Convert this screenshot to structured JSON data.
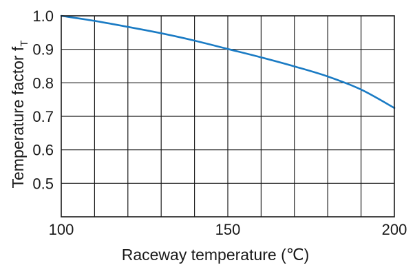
{
  "chart_data": {
    "type": "line",
    "title": "",
    "xlabel": "Raceway temperature (℃)",
    "ylabel": "Temperature factor f",
    "ylabel_subscript": "T",
    "xlim": [
      100,
      200
    ],
    "ylim": [
      0.4,
      1.0
    ],
    "x_ticks": [
      100,
      150,
      200
    ],
    "x_tick_labels": [
      "100",
      "150",
      "200"
    ],
    "y_ticks": [
      0.5,
      0.6,
      0.7,
      0.8,
      0.9,
      1.0
    ],
    "y_tick_labels": [
      "0.5",
      "0.6",
      "0.7",
      "0.8",
      "0.9",
      "1.0"
    ],
    "x_grid_step": 10,
    "y_grid_step": 0.1,
    "grid": true,
    "series": [
      {
        "color": "#1a7bc4",
        "x": [
          100,
          110,
          120,
          130,
          140,
          150,
          160,
          170,
          180,
          190,
          200
        ],
        "y": [
          1.0,
          0.985,
          0.967,
          0.948,
          0.926,
          0.901,
          0.876,
          0.849,
          0.819,
          0.78,
          0.725
        ]
      }
    ]
  }
}
